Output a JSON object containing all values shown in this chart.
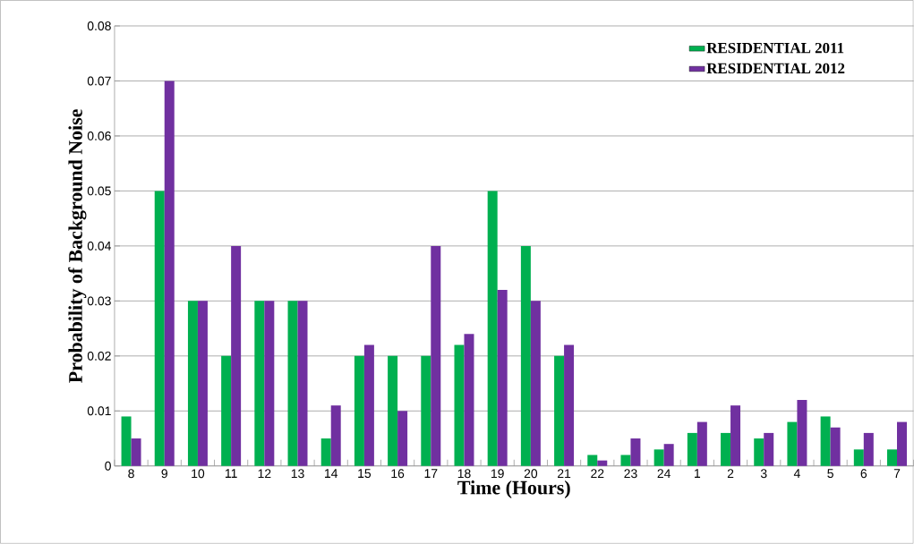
{
  "chart_data": {
    "type": "bar",
    "xlabel": "Time (Hours)",
    "ylabel": "Probability of Background Noise",
    "categories": [
      "8",
      "9",
      "10",
      "11",
      "12",
      "13",
      "14",
      "15",
      "16",
      "17",
      "18",
      "19",
      "20",
      "21",
      "22",
      "23",
      "24",
      "1",
      "2",
      "3",
      "4",
      "5",
      "6",
      "7"
    ],
    "series": [
      {
        "name": "RESIDENTIAL 2011",
        "color": "#00b050",
        "values": [
          0.009,
          0.05,
          0.03,
          0.02,
          0.03,
          0.03,
          0.005,
          0.02,
          0.02,
          0.02,
          0.022,
          0.05,
          0.04,
          0.02,
          0.002,
          0.002,
          0.003,
          0.006,
          0.006,
          0.005,
          0.008,
          0.009,
          0.003,
          0.003
        ]
      },
      {
        "name": "RESIDENTIAL 2012",
        "color": "#7030a0",
        "values": [
          0.005,
          0.07,
          0.03,
          0.04,
          0.03,
          0.03,
          0.011,
          0.022,
          0.01,
          0.04,
          0.024,
          0.032,
          0.03,
          0.022,
          0.001,
          0.005,
          0.004,
          0.008,
          0.011,
          0.006,
          0.012,
          0.007,
          0.006,
          0.008
        ]
      }
    ],
    "ylim": [
      0,
      0.08
    ],
    "yticks": [
      0,
      0.01,
      0.02,
      0.03,
      0.04,
      0.05,
      0.06,
      0.07,
      0.08
    ],
    "grid": "y",
    "legend": "top right"
  }
}
